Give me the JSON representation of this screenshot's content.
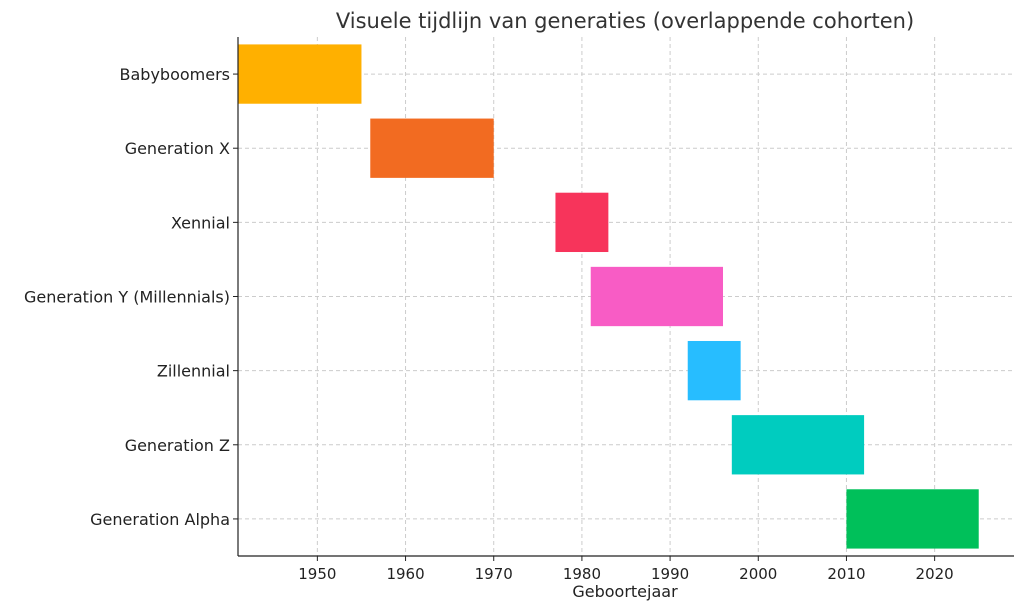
{
  "chart_data": {
    "type": "bar",
    "orientation": "horizontal-range",
    "title": "Visuele tijdlijn van generaties (overlappende cohorten)",
    "xlabel": "Geboortejaar",
    "ylabel": "",
    "xlim": [
      1941,
      2029
    ],
    "xticks": [
      1950,
      1960,
      1970,
      1980,
      1990,
      2000,
      2010,
      2020
    ],
    "grid": true,
    "series": [
      {
        "label": "Babyboomers",
        "start": 1941,
        "end": 1955,
        "color": "#FFB000"
      },
      {
        "label": "Generation X",
        "start": 1956,
        "end": 1970,
        "color": "#F26B21"
      },
      {
        "label": "Xennial",
        "start": 1977,
        "end": 1983,
        "color": "#F7345B"
      },
      {
        "label": "Generation Y (Millennials)",
        "start": 1981,
        "end": 1996,
        "color": "#F85CC5"
      },
      {
        "label": "Zillennial",
        "start": 1992,
        "end": 1998,
        "color": "#27BDFF"
      },
      {
        "label": "Generation Z",
        "start": 1997,
        "end": 2012,
        "color": "#00CCBF"
      },
      {
        "label": "Generation Alpha",
        "start": 2010,
        "end": 2025,
        "color": "#00C05A"
      }
    ]
  }
}
